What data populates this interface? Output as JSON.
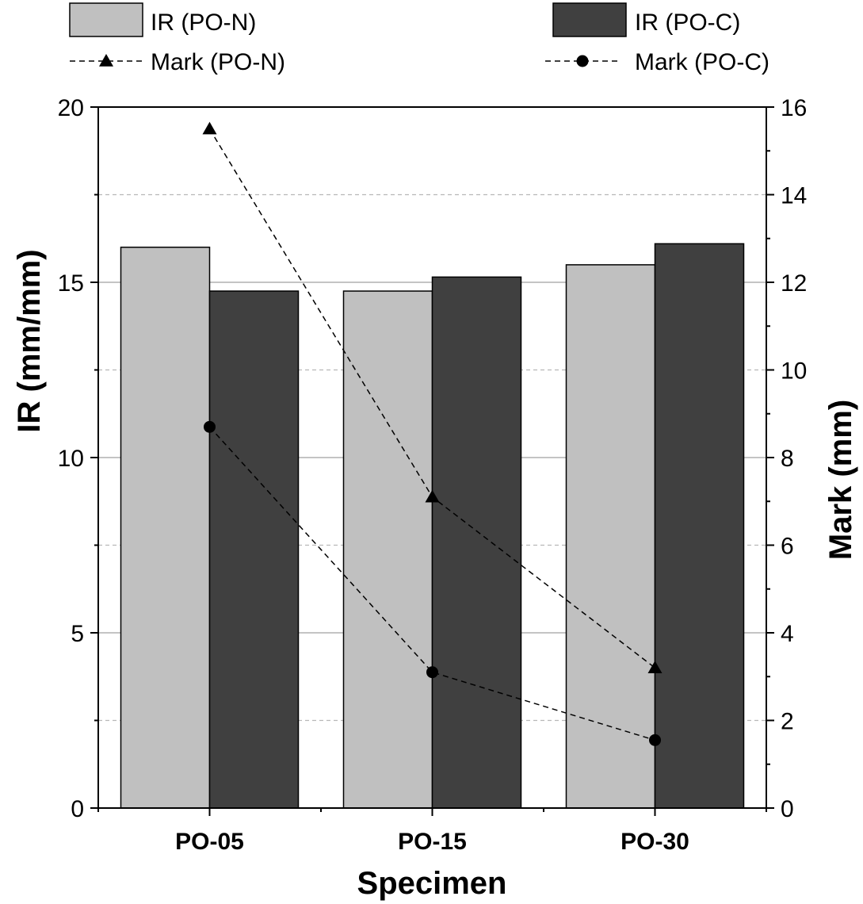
{
  "chart_data": {
    "type": "bar+line",
    "title": "",
    "xlabel": "Specimen",
    "ylabel_left": "IR (mm/mm)",
    "ylabel_right": "Mark (mm)",
    "categories": [
      "PO-05",
      "PO-15",
      "PO-30"
    ],
    "ylim_left": [
      0,
      20
    ],
    "ylim_right": [
      0,
      16
    ],
    "yticks_left": [
      "0",
      "5",
      "10",
      "15",
      "20"
    ],
    "yticks_right": [
      "0",
      "2",
      "4",
      "6",
      "8",
      "10",
      "12",
      "14",
      "16"
    ],
    "grid": "horizontal",
    "legend_position": "top",
    "bar_series": [
      {
        "name": "IR (PO-N)",
        "axis": "left",
        "color": "#c0c0c0",
        "values": [
          16.0,
          14.75,
          15.5
        ]
      },
      {
        "name": "IR (PO-C)",
        "axis": "left",
        "color": "#404040",
        "values": [
          14.75,
          15.15,
          16.1
        ]
      }
    ],
    "line_series": [
      {
        "name": "Mark (PO-N)",
        "axis": "right",
        "marker": "triangle",
        "line_style": "dashed",
        "values": [
          15.5,
          7.1,
          3.2
        ]
      },
      {
        "name": "Mark (PO-C)",
        "axis": "right",
        "marker": "circle",
        "line_style": "dashed",
        "values": [
          8.7,
          3.1,
          1.55
        ]
      }
    ]
  }
}
